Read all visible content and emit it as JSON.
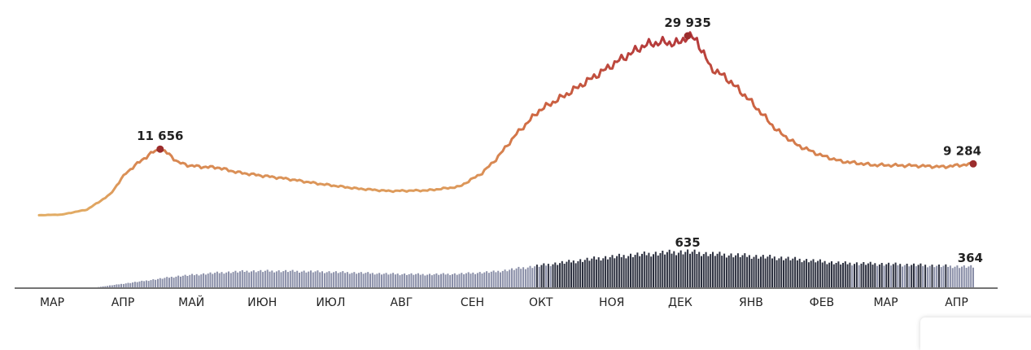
{
  "chart_data": [
    {
      "type": "line",
      "name": "cases",
      "x": [
        "2020-03-15",
        "2020-03-25",
        "2020-04-05",
        "2020-04-15",
        "2020-04-22",
        "2020-04-29",
        "2020-05-04",
        "2020-05-07",
        "2020-05-11",
        "2020-05-15",
        "2020-05-20",
        "2020-05-25",
        "2020-06-01",
        "2020-06-10",
        "2020-06-20",
        "2020-07-01",
        "2020-07-15",
        "2020-08-01",
        "2020-08-15",
        "2020-09-01",
        "2020-09-15",
        "2020-09-25",
        "2020-10-01",
        "2020-10-10",
        "2020-10-20",
        "2020-11-01",
        "2020-11-15",
        "2020-11-25",
        "2020-12-05",
        "2020-12-12",
        "2020-12-20",
        "2020-12-24",
        "2020-12-28",
        "2021-01-03",
        "2021-01-10",
        "2021-01-20",
        "2021-02-01",
        "2021-02-10",
        "2021-02-20",
        "2021-03-01",
        "2021-03-15",
        "2021-04-01",
        "2021-04-15",
        "2021-04-28"
      ],
      "values": [
        1000,
        1100,
        1900,
        4300,
        7800,
        9900,
        11200,
        11656,
        10800,
        9500,
        9000,
        8800,
        8700,
        7900,
        7400,
        6900,
        6100,
        5300,
        4900,
        5000,
        5600,
        7800,
        10000,
        14100,
        17900,
        20500,
        23800,
        26200,
        28400,
        28900,
        28700,
        29935,
        29200,
        24800,
        23100,
        19600,
        14700,
        12300,
        10700,
        9700,
        9100,
        9000,
        8800,
        9284
      ],
      "highlights": [
        {
          "x": "2020-05-07",
          "value": 11656,
          "label": "11 656"
        },
        {
          "x": "2020-12-24",
          "value": 29935,
          "label": "29 935"
        },
        {
          "x": "2021-04-28",
          "value": 9284,
          "label": "9 284"
        }
      ],
      "gradient_colors": [
        "#e3b067",
        "#d06a43",
        "#b2353a"
      ]
    },
    {
      "type": "bar",
      "name": "deaths",
      "x": [
        "2020-04-10",
        "2020-05-01",
        "2020-05-15",
        "2020-06-01",
        "2020-06-15",
        "2020-07-01",
        "2020-07-15",
        "2020-08-01",
        "2020-08-15",
        "2020-09-01",
        "2020-09-15",
        "2020-10-01",
        "2020-10-15",
        "2020-11-01",
        "2020-11-15",
        "2020-12-01",
        "2020-12-15",
        "2020-12-24",
        "2021-01-01",
        "2021-01-15",
        "2021-02-01",
        "2021-02-15",
        "2021-03-01",
        "2021-03-15",
        "2021-04-01",
        "2021-04-15",
        "2021-04-28"
      ],
      "values": [
        5,
        120,
        200,
        260,
        290,
        290,
        280,
        260,
        240,
        230,
        240,
        280,
        360,
        450,
        520,
        580,
        620,
        635,
        600,
        570,
        530,
        480,
        430,
        420,
        400,
        380,
        364
      ],
      "highlights": [
        {
          "x": "2020-12-24",
          "value": 635,
          "label": "635"
        },
        {
          "x": "2021-04-28",
          "value": 364,
          "label": "364"
        }
      ],
      "bar_color": "#8a8fa8",
      "bar_color_dark": "#2b2f3e"
    }
  ],
  "x_axis": {
    "ticks": [
      {
        "x": "2020-03-15",
        "label": "МАР"
      },
      {
        "x": "2020-04-15",
        "label": "АПР"
      },
      {
        "x": "2020-05-15",
        "label": "МАЙ"
      },
      {
        "x": "2020-06-15",
        "label": "ИЮН"
      },
      {
        "x": "2020-07-15",
        "label": "ИЮЛ"
      },
      {
        "x": "2020-08-15",
        "label": "АВГ"
      },
      {
        "x": "2020-09-15",
        "label": "СЕН"
      },
      {
        "x": "2020-10-15",
        "label": "ОКТ"
      },
      {
        "x": "2020-11-15",
        "label": "НОЯ"
      },
      {
        "x": "2020-12-15",
        "label": "ДЕК"
      },
      {
        "x": "2021-01-15",
        "label": "ЯНВ"
      },
      {
        "x": "2021-02-15",
        "label": "ФЕВ"
      },
      {
        "x": "2021-03-15",
        "label": "МАР"
      },
      {
        "x": "2021-04-15",
        "label": "АПР"
      }
    ],
    "range": [
      "2020-03-15",
      "2021-04-28"
    ]
  },
  "colors": {
    "axis": "#222222",
    "highlight_dot": "#9b2c2c"
  }
}
